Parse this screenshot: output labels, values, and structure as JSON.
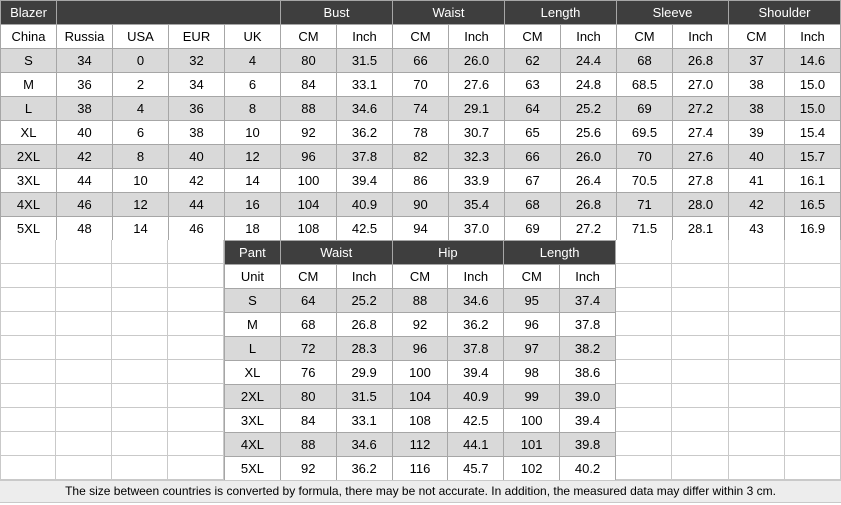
{
  "blazer_table": {
    "title": "Blazer",
    "group_headers": [
      "Bust",
      "Waist",
      "Length",
      "Sleeve",
      "Shoulder"
    ],
    "unit_row": [
      "China",
      "Russia",
      "USA",
      "EUR",
      "UK",
      "CM",
      "Inch",
      "CM",
      "Inch",
      "CM",
      "Inch",
      "CM",
      "Inch",
      "CM",
      "Inch"
    ],
    "rows": [
      [
        "S",
        "34",
        "0",
        "32",
        "4",
        "80",
        "31.5",
        "66",
        "26.0",
        "62",
        "24.4",
        "68",
        "26.8",
        "37",
        "14.6"
      ],
      [
        "M",
        "36",
        "2",
        "34",
        "6",
        "84",
        "33.1",
        "70",
        "27.6",
        "63",
        "24.8",
        "68.5",
        "27.0",
        "38",
        "15.0"
      ],
      [
        "L",
        "38",
        "4",
        "36",
        "8",
        "88",
        "34.6",
        "74",
        "29.1",
        "64",
        "25.2",
        "69",
        "27.2",
        "38",
        "15.0"
      ],
      [
        "XL",
        "40",
        "6",
        "38",
        "10",
        "92",
        "36.2",
        "78",
        "30.7",
        "65",
        "25.6",
        "69.5",
        "27.4",
        "39",
        "15.4"
      ],
      [
        "2XL",
        "42",
        "8",
        "40",
        "12",
        "96",
        "37.8",
        "82",
        "32.3",
        "66",
        "26.0",
        "70",
        "27.6",
        "40",
        "15.7"
      ],
      [
        "3XL",
        "44",
        "10",
        "42",
        "14",
        "100",
        "39.4",
        "86",
        "33.9",
        "67",
        "26.4",
        "70.5",
        "27.8",
        "41",
        "16.1"
      ],
      [
        "4XL",
        "46",
        "12",
        "44",
        "16",
        "104",
        "40.9",
        "90",
        "35.4",
        "68",
        "26.8",
        "71",
        "28.0",
        "42",
        "16.5"
      ],
      [
        "5XL",
        "48",
        "14",
        "46",
        "18",
        "108",
        "42.5",
        "94",
        "37.0",
        "69",
        "27.2",
        "71.5",
        "28.1",
        "43",
        "16.9"
      ]
    ]
  },
  "pant_table": {
    "title": "Pant",
    "group_headers": [
      "Waist",
      "Hip",
      "Length"
    ],
    "unit_row": [
      "Unit",
      "CM",
      "Inch",
      "CM",
      "Inch",
      "CM",
      "Inch"
    ],
    "rows": [
      [
        "S",
        "64",
        "25.2",
        "88",
        "34.6",
        "95",
        "37.4"
      ],
      [
        "M",
        "68",
        "26.8",
        "92",
        "36.2",
        "96",
        "37.8"
      ],
      [
        "L",
        "72",
        "28.3",
        "96",
        "37.8",
        "97",
        "38.2"
      ],
      [
        "XL",
        "76",
        "29.9",
        "100",
        "39.4",
        "98",
        "38.6"
      ],
      [
        "2XL",
        "80",
        "31.5",
        "104",
        "40.9",
        "99",
        "39.0"
      ],
      [
        "3XL",
        "84",
        "33.1",
        "108",
        "42.5",
        "100",
        "39.4"
      ],
      [
        "4XL",
        "88",
        "34.6",
        "112",
        "44.1",
        "101",
        "39.8"
      ],
      [
        "5XL",
        "92",
        "36.2",
        "116",
        "45.7",
        "102",
        "40.2"
      ]
    ]
  },
  "footer": {
    "note": "The size between countries is converted by formula, there may be not accurate. In addition, the measured data may differ within 3 cm."
  },
  "colors": {
    "header_bg": "#3e3e3e",
    "header_text": "#ffffff",
    "row_alt_bg": "#d9d9d9",
    "row_bg": "#ffffff",
    "footer_bg": "#ededed",
    "table_border": "#a6a6a6",
    "grid_border": "#c9c9c9",
    "text": "#000000"
  }
}
